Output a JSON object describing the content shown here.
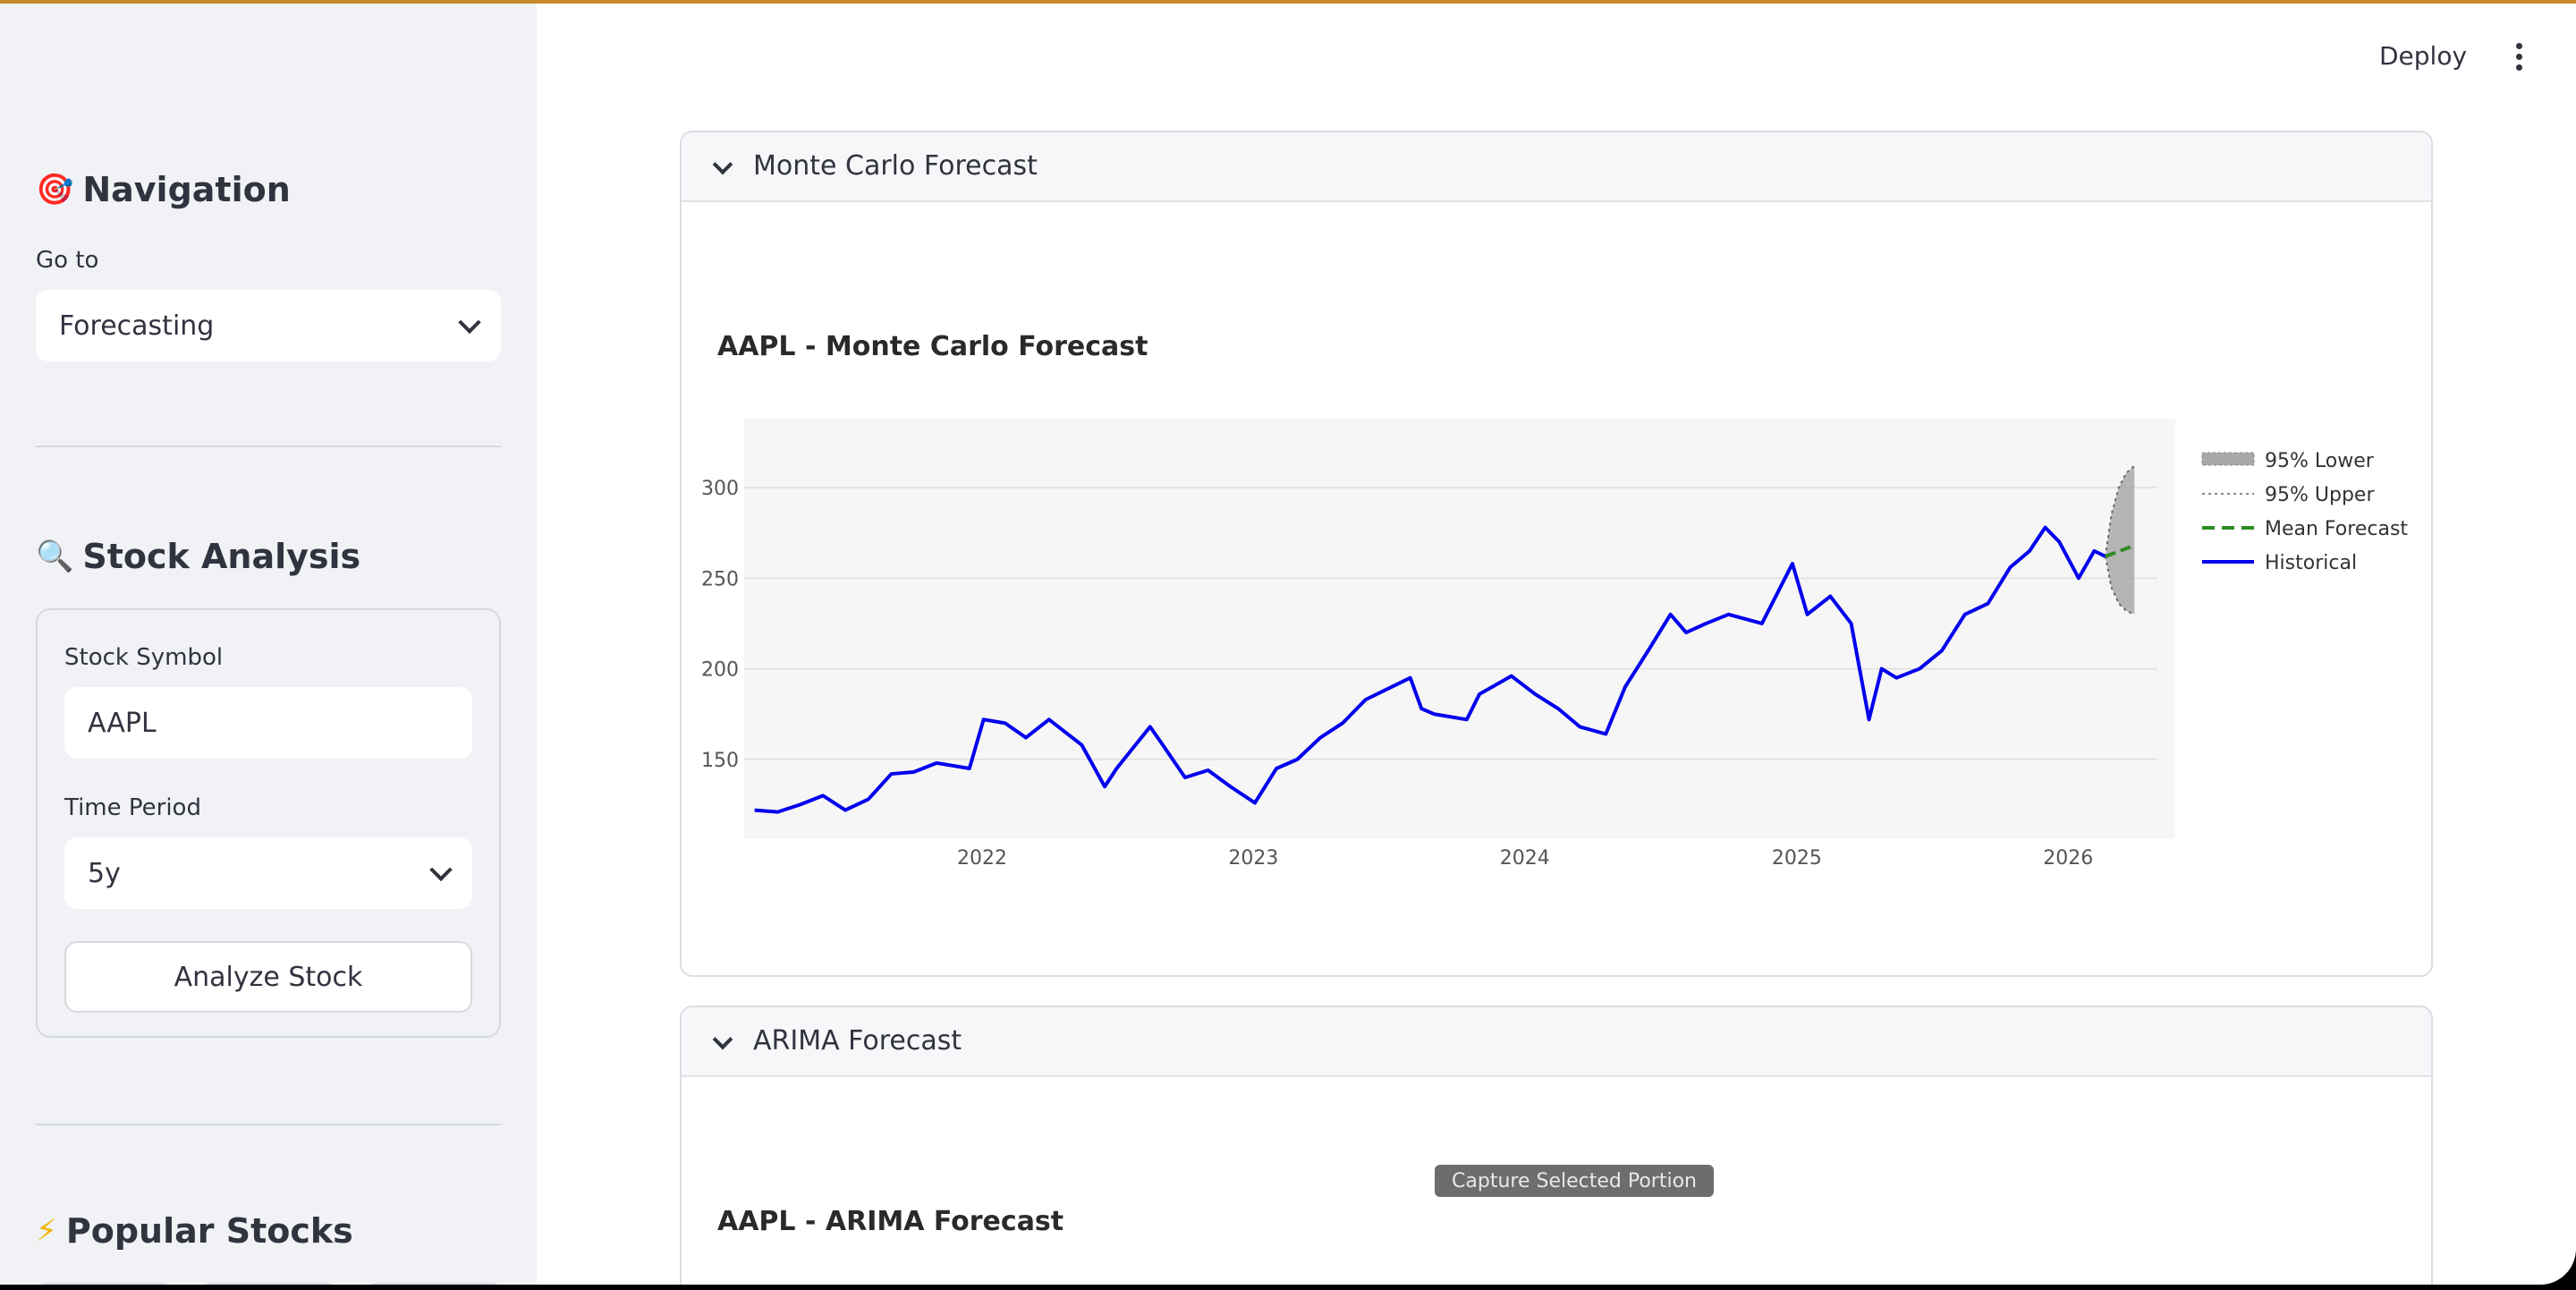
{
  "sidebar": {
    "navigation": {
      "icon": "target-icon",
      "title": "Navigation",
      "goto_label": "Go to",
      "goto_value": "Forecasting"
    },
    "stock_analysis": {
      "icon": "magnifier-icon",
      "title": "Stock Analysis",
      "symbol_label": "Stock Symbol",
      "symbol_value": "AAPL",
      "period_label": "Time Period",
      "period_value": "5y",
      "analyze_button": "Analyze Stock"
    },
    "popular": {
      "icon": "lightning-icon",
      "title": "Popular Stocks"
    }
  },
  "header": {
    "deploy_label": "Deploy",
    "menu_icon": "more-vert-icon"
  },
  "expanders": [
    {
      "title": "Monte Carlo Forecast",
      "chart_title": "AAPL - Monte Carlo Forecast"
    },
    {
      "title": "ARIMA Forecast",
      "chart_title": "AAPL - ARIMA Forecast"
    }
  ],
  "overlay": {
    "capture_label": "Capture Selected Portion"
  },
  "colors": {
    "historical": "#0000ee",
    "mean_forecast": "#2e8b22",
    "band_fill": "#a9a9a9",
    "plot_bg": "#f6f6f6",
    "accent_top": "#c98a2a"
  },
  "chart_data": {
    "type": "line",
    "title": "AAPL - Monte Carlo Forecast",
    "xlabel": "",
    "ylabel": "",
    "x_ticks": [
      "2022",
      "2023",
      "2024",
      "2025",
      "2026"
    ],
    "y_ticks": [
      150,
      200,
      250,
      300
    ],
    "xlim": [
      "2021-02-15",
      "2026-05-25"
    ],
    "ylim": [
      106,
      338
    ],
    "grid": true,
    "legend_position": "right",
    "series": [
      {
        "name": "Historical",
        "style": "solid",
        "x": [
          "2021-03-01",
          "2021-04-01",
          "2021-05-01",
          "2021-06-01",
          "2021-07-01",
          "2021-08-01",
          "2021-09-01",
          "2021-10-01",
          "2021-11-01",
          "2021-12-15",
          "2022-01-03",
          "2022-02-01",
          "2022-03-01",
          "2022-04-01",
          "2022-05-15",
          "2022-06-15",
          "2022-07-01",
          "2022-08-15",
          "2022-09-01",
          "2022-10-01",
          "2022-11-01",
          "2022-12-01",
          "2023-01-03",
          "2023-02-01",
          "2023-03-01",
          "2023-04-01",
          "2023-05-01",
          "2023-06-01",
          "2023-07-31",
          "2023-08-15",
          "2023-09-01",
          "2023-10-15",
          "2023-11-01",
          "2023-12-14",
          "2024-01-15",
          "2024-02-15",
          "2024-03-15",
          "2024-04-19",
          "2024-05-15",
          "2024-06-15",
          "2024-07-15",
          "2024-08-05",
          "2024-09-01",
          "2024-10-01",
          "2024-11-15",
          "2024-12-26",
          "2025-01-15",
          "2025-02-15",
          "2025-03-15",
          "2025-04-08",
          "2025-04-25",
          "2025-05-15",
          "2025-06-15",
          "2025-07-15",
          "2025-08-15",
          "2025-09-15",
          "2025-10-15",
          "2025-11-10",
          "2025-12-01",
          "2025-12-20",
          "2026-01-15",
          "2026-02-05",
          "2026-02-20"
        ],
        "y": [
          122,
          121,
          125,
          130,
          122,
          128,
          142,
          143,
          148,
          145,
          172,
          170,
          162,
          172,
          158,
          135,
          145,
          168,
          158,
          140,
          144,
          135,
          126,
          145,
          150,
          162,
          170,
          183,
          195,
          178,
          175,
          172,
          186,
          196,
          186,
          178,
          168,
          164,
          190,
          210,
          230,
          220,
          225,
          230,
          225,
          258,
          230,
          240,
          225,
          172,
          200,
          195,
          200,
          210,
          230,
          236,
          256,
          265,
          278,
          270,
          250,
          265,
          262
        ]
      },
      {
        "name": "Mean Forecast",
        "style": "dash",
        "x": [
          "2026-02-20",
          "2026-03-31"
        ],
        "y": [
          262,
          268
        ]
      },
      {
        "name": "95% Upper",
        "style": "dot",
        "x": [
          "2026-02-20",
          "2026-02-28",
          "2026-03-10",
          "2026-03-20",
          "2026-03-31"
        ],
        "y": [
          262,
          285,
          300,
          308,
          312
        ]
      },
      {
        "name": "95% Lower",
        "style": "fill",
        "x": [
          "2026-02-20",
          "2026-02-28",
          "2026-03-10",
          "2026-03-20",
          "2026-03-31"
        ],
        "y": [
          262,
          245,
          236,
          232,
          230
        ]
      }
    ],
    "legend": [
      "95% Lower",
      "95% Upper",
      "Mean Forecast",
      "Historical"
    ]
  }
}
